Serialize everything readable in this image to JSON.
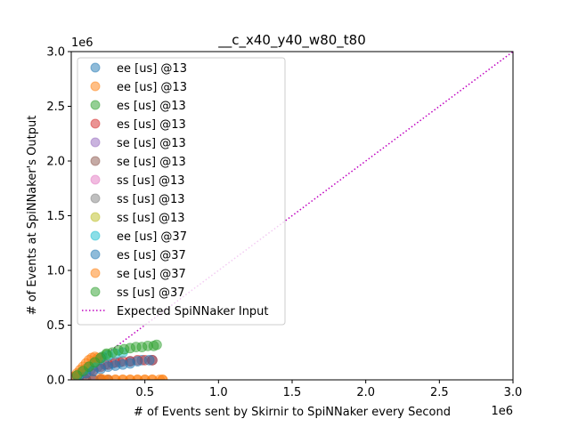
{
  "chart_data": {
    "type": "scatter",
    "title": "__c_x40_y40_w80_t80",
    "xlabel": "# of Events sent by Skirnir to SpiNNaker every Second",
    "ylabel": "# of Events at SpiNNaker's Output",
    "x_offset_label": "1e6",
    "y_offset_label": "1e6",
    "xlim": [
      0,
      3.0
    ],
    "ylim": [
      0,
      3.0
    ],
    "x_ticks": [
      "0.5",
      "1.0",
      "1.5",
      "2.0",
      "2.5",
      "3.0"
    ],
    "x_tick_values": [
      0.5,
      1.0,
      1.5,
      2.0,
      2.5,
      3.0
    ],
    "y_ticks": [
      "0.0",
      "0.5",
      "1.0",
      "1.5",
      "2.0",
      "2.5",
      "3.0"
    ],
    "y_tick_values": [
      0.0,
      0.5,
      1.0,
      1.5,
      2.0,
      2.5,
      3.0
    ],
    "grid": false,
    "legend_position": "upper-left",
    "series": [
      {
        "name": "ee [us] @13",
        "color": "#1f77b4",
        "x": [
          0.03,
          0.08,
          0.13,
          0.18,
          0.23,
          0.28,
          0.33,
          0.4,
          0.48,
          0.55
        ],
        "y": [
          0.03,
          0.06,
          0.09,
          0.12,
          0.14,
          0.15,
          0.16,
          0.17,
          0.18,
          0.18
        ]
      },
      {
        "name": "ee [us] @13",
        "color": "#ff7f0e",
        "x": [
          0.05,
          0.1,
          0.15,
          0.2,
          0.25,
          0.3,
          0.35,
          0.4,
          0.45,
          0.5,
          0.55,
          0.62
        ],
        "y": [
          0.0,
          0.0,
          0.0,
          0.0,
          0.0,
          0.0,
          0.0,
          0.0,
          0.0,
          0.0,
          0.0,
          0.0
        ]
      },
      {
        "name": "es [us] @13",
        "color": "#2ca02c",
        "x": [
          0.03,
          0.06,
          0.09,
          0.12,
          0.15,
          0.18,
          0.21,
          0.24
        ],
        "y": [
          0.03,
          0.06,
          0.09,
          0.12,
          0.15,
          0.18,
          0.21,
          0.24
        ]
      },
      {
        "name": "es [us] @13",
        "color": "#d62728",
        "x": [
          0.05,
          0.1,
          0.15,
          0.2,
          0.25,
          0.3,
          0.35,
          0.4,
          0.45,
          0.5,
          0.55
        ],
        "y": [
          0.03,
          0.06,
          0.09,
          0.12,
          0.14,
          0.16,
          0.17,
          0.17,
          0.18,
          0.18,
          0.18
        ]
      },
      {
        "name": "se [us] @13",
        "color": "#9467bd",
        "x": [
          0.05,
          0.1,
          0.15,
          0.2
        ],
        "y": [
          0.0,
          0.0,
          0.0,
          0.0
        ]
      },
      {
        "name": "se [us] @13",
        "color": "#8c564b",
        "x": [
          0.05,
          0.1,
          0.15,
          0.2,
          0.25
        ],
        "y": [
          0.0,
          0.0,
          0.0,
          0.0,
          0.0
        ]
      },
      {
        "name": "ss [us] @13",
        "color": "#e377c2",
        "x": [
          0.03,
          0.06,
          0.1
        ],
        "y": [
          0.03,
          0.06,
          0.1
        ]
      },
      {
        "name": "ss [us] @13",
        "color": "#7f7f7f",
        "x": [
          0.04,
          0.08,
          0.12,
          0.16,
          0.2
        ],
        "y": [
          0.04,
          0.08,
          0.12,
          0.16,
          0.2
        ]
      },
      {
        "name": "ss [us] @13",
        "color": "#bcbd22",
        "x": [
          0.05,
          0.1,
          0.15
        ],
        "y": [
          0.05,
          0.1,
          0.15
        ]
      },
      {
        "name": "ee [us] @37",
        "color": "#17becf",
        "x": [
          0.05,
          0.1,
          0.15,
          0.2,
          0.25,
          0.3,
          0.35
        ],
        "y": [
          0.05,
          0.1,
          0.15,
          0.19,
          0.22,
          0.24,
          0.25
        ]
      },
      {
        "name": "es [us] @37",
        "color": "#1f77b4",
        "x": [
          0.05,
          0.1,
          0.15,
          0.2,
          0.25,
          0.3,
          0.35,
          0.4,
          0.45,
          0.53
        ],
        "y": [
          0.03,
          0.06,
          0.08,
          0.1,
          0.12,
          0.13,
          0.14,
          0.15,
          0.17,
          0.18
        ]
      },
      {
        "name": "se [us] @37",
        "color": "#ff7f0e",
        "x": [
          0.02,
          0.04,
          0.06,
          0.08,
          0.1,
          0.12,
          0.14,
          0.16,
          0.18,
          0.2,
          0.22,
          0.25,
          0.3,
          0.35,
          0.4,
          0.45,
          0.5,
          0.55,
          0.6,
          0.62
        ],
        "y": [
          0.03,
          0.06,
          0.09,
          0.12,
          0.15,
          0.18,
          0.2,
          0.21,
          0.2,
          0.01,
          0.0,
          0.0,
          0.0,
          0.0,
          0.0,
          0.0,
          0.0,
          0.0,
          0.0,
          0.0
        ]
      },
      {
        "name": "ss [us] @37",
        "color": "#2ca02c",
        "x": [
          0.04,
          0.08,
          0.12,
          0.16,
          0.2,
          0.24,
          0.28,
          0.32,
          0.36,
          0.4,
          0.44,
          0.48,
          0.52,
          0.56,
          0.58
        ],
        "y": [
          0.04,
          0.08,
          0.12,
          0.16,
          0.2,
          0.23,
          0.25,
          0.27,
          0.28,
          0.29,
          0.3,
          0.3,
          0.31,
          0.31,
          0.32
        ]
      }
    ],
    "reference_line": {
      "name": "Expected SpiNNaker Input",
      "color": "#bf00bf",
      "style": "dotted",
      "x": [
        0,
        3.0
      ],
      "y": [
        0,
        3.0
      ]
    }
  }
}
